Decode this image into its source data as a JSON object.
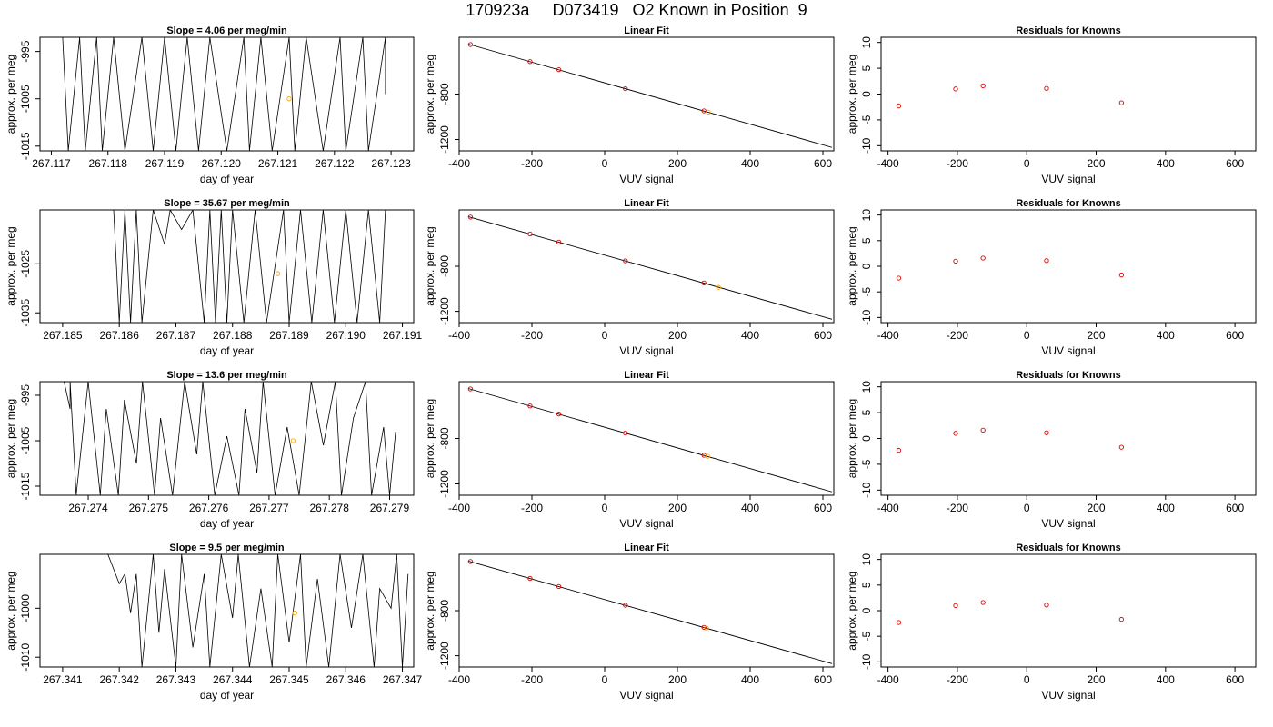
{
  "page": {
    "title": "170923a     D073419   O2 Known in Position  9"
  },
  "chart_data": [
    {
      "type": "line",
      "panel": "time-series-1",
      "title": "Slope =  4.06  per meg/min",
      "xlabel": "day of year",
      "ylabel": "approx. per meg",
      "xlim": [
        267.1168,
        267.1234
      ],
      "ylim": [
        -1016,
        -992
      ],
      "xticks": [
        267.117,
        267.118,
        267.119,
        267.12,
        267.121,
        267.122,
        267.123
      ],
      "yticks": [
        -995,
        -1005,
        -1015
      ],
      "grid": false,
      "series": [
        {
          "values": [
            [
              267.1172,
              -992
            ],
            [
              267.1173,
              -1016
            ],
            [
              267.1175,
              -992
            ],
            [
              267.1176,
              -1016
            ],
            [
              267.1178,
              -992
            ],
            [
              267.1179,
              -1016
            ],
            [
              267.1181,
              -992
            ],
            [
              267.1183,
              -1016
            ],
            [
              267.1186,
              -992
            ],
            [
              267.1188,
              -1016
            ],
            [
              267.119,
              -992
            ],
            [
              267.1192,
              -1016
            ],
            [
              267.1194,
              -992
            ],
            [
              267.1196,
              -1016
            ],
            [
              267.1198,
              -992
            ],
            [
              267.1201,
              -1016
            ],
            [
              267.1204,
              -992
            ],
            [
              267.1205,
              -1016
            ],
            [
              267.1207,
              -992
            ],
            [
              267.1209,
              -1016
            ],
            [
              267.1212,
              -992
            ],
            [
              267.1213,
              -1016
            ],
            [
              267.1215,
              -992
            ],
            [
              267.1218,
              -1016
            ],
            [
              267.1221,
              -992
            ],
            [
              267.1222,
              -1016
            ],
            [
              267.1225,
              -992
            ],
            [
              267.1226,
              -1016
            ],
            [
              267.1229,
              -992
            ],
            [
              267.1229,
              -1004
            ]
          ]
        }
      ],
      "markers": [
        {
          "x": 267.1212,
          "y": -1005,
          "color": "#ffa500"
        }
      ]
    },
    {
      "type": "scatter",
      "panel": "linear-fit-1",
      "title": "Linear Fit",
      "xlabel": "VUV signal",
      "ylabel": "approx. per meg",
      "xlim": [
        -400,
        630
      ],
      "ylim": [
        -1300,
        -300
      ],
      "xticks": [
        -400,
        -200,
        0,
        200,
        400,
        600
      ],
      "yticks": [
        -800,
        -1200
      ],
      "fit_line": [
        [
          -375,
          -360
        ],
        [
          625,
          -1270
        ]
      ],
      "points": [
        {
          "x": -369,
          "y": -364
        },
        {
          "x": -205,
          "y": -514
        },
        {
          "x": -126,
          "y": -585
        },
        {
          "x": 57,
          "y": -752
        },
        {
          "x": 273,
          "y": -948
        }
      ],
      "point_color": "#dd0000",
      "markers": [
        {
          "x": 285,
          "y": -959,
          "color": "#ffa500"
        }
      ]
    },
    {
      "type": "scatter",
      "panel": "residuals-1",
      "title": "Residuals for Knowns",
      "xlabel": "VUV signal",
      "ylabel": "approx. per meg",
      "xlim": [
        -420,
        660
      ],
      "ylim": [
        -11,
        11
      ],
      "xticks": [
        -400,
        -200,
        0,
        200,
        400,
        600
      ],
      "yticks": [
        10,
        5,
        0,
        -5,
        -10
      ],
      "points": [
        {
          "x": -369,
          "y": -2.3
        },
        {
          "x": -205,
          "y": 1.0
        },
        {
          "x": -126,
          "y": 1.6
        },
        {
          "x": 57,
          "y": 1.1
        },
        {
          "x": 273,
          "y": -1.7
        }
      ],
      "point_color": "#dd0000"
    },
    {
      "type": "line",
      "panel": "time-series-2",
      "title": "Slope =  35.67  per meg/min",
      "xlabel": "day of year",
      "ylabel": "approx. per meg",
      "xlim": [
        267.1846,
        267.1912
      ],
      "ylim": [
        -1037,
        -1014
      ],
      "xticks": [
        267.185,
        267.186,
        267.187,
        267.188,
        267.189,
        267.19,
        267.191
      ],
      "yticks": [
        -1025,
        -1035
      ],
      "grid": false,
      "series": [
        {
          "values": [
            [
              267.1859,
              -1014
            ],
            [
              267.186,
              -1037
            ],
            [
              267.1861,
              -1014
            ],
            [
              267.1862,
              -1037
            ],
            [
              267.1863,
              -1014
            ],
            [
              267.1864,
              -1037
            ],
            [
              267.1866,
              -1014
            ],
            [
              267.1868,
              -1021
            ],
            [
              267.1869,
              -1014
            ],
            [
              267.1871,
              -1018
            ],
            [
              267.1873,
              -1014
            ],
            [
              267.1875,
              -1037
            ],
            [
              267.1876,
              -1014
            ],
            [
              267.1877,
              -1037
            ],
            [
              267.1878,
              -1014
            ],
            [
              267.1879,
              -1037
            ],
            [
              267.188,
              -1014
            ],
            [
              267.1882,
              -1037
            ],
            [
              267.1884,
              -1014
            ],
            [
              267.1886,
              -1037
            ],
            [
              267.1889,
              -1014
            ],
            [
              267.189,
              -1037
            ],
            [
              267.1892,
              -1014
            ],
            [
              267.1894,
              -1037
            ],
            [
              267.1896,
              -1014
            ],
            [
              267.1898,
              -1037
            ],
            [
              267.19,
              -1014
            ],
            [
              267.1902,
              -1037
            ],
            [
              267.1904,
              -1014
            ],
            [
              267.1906,
              -1037
            ],
            [
              267.1907,
              -1014
            ]
          ]
        }
      ],
      "markers": [
        {
          "x": 267.1888,
          "y": -1027,
          "color": "#ffa500"
        }
      ]
    },
    {
      "type": "scatter",
      "panel": "linear-fit-2",
      "title": "Linear Fit",
      "xlabel": "VUV signal",
      "ylabel": "approx. per meg",
      "xlim": [
        -400,
        630
      ],
      "ylim": [
        -1300,
        -300
      ],
      "xticks": [
        -400,
        -200,
        0,
        200,
        400,
        600
      ],
      "yticks": [
        -800,
        -1200
      ],
      "fit_line": [
        [
          -375,
          -360
        ],
        [
          625,
          -1270
        ]
      ],
      "points": [
        {
          "x": -369,
          "y": -364
        },
        {
          "x": -205,
          "y": -514
        },
        {
          "x": -126,
          "y": -585
        },
        {
          "x": 57,
          "y": -752
        },
        {
          "x": 273,
          "y": -948
        }
      ],
      "point_color": "#dd0000",
      "markers": [
        {
          "x": 313,
          "y": -987,
          "color": "#ffa500"
        }
      ]
    },
    {
      "type": "scatter",
      "panel": "residuals-2",
      "title": "Residuals for Knowns",
      "xlabel": "VUV signal",
      "ylabel": "approx. per meg",
      "xlim": [
        -420,
        660
      ],
      "ylim": [
        -11,
        11
      ],
      "xticks": [
        -400,
        -200,
        0,
        200,
        400,
        600
      ],
      "yticks": [
        10,
        5,
        0,
        -5,
        -10
      ],
      "points": [
        {
          "x": -369,
          "y": -2.3
        },
        {
          "x": -205,
          "y": 1.0
        },
        {
          "x": -126,
          "y": 1.6
        },
        {
          "x": 57,
          "y": 1.1
        },
        {
          "x": 273,
          "y": -1.7
        }
      ],
      "point_color": "#dd0000"
    },
    {
      "type": "line",
      "panel": "time-series-3",
      "title": "Slope =  13.6  per meg/min",
      "xlabel": "day of year",
      "ylabel": "approx. per meg",
      "xlim": [
        267.2732,
        267.2794
      ],
      "ylim": [
        -1017,
        -992
      ],
      "xticks": [
        267.274,
        267.275,
        267.276,
        267.277,
        267.278,
        267.279
      ],
      "yticks": [
        -995,
        -1005,
        -1015
      ],
      "grid": false,
      "series": [
        {
          "values": [
            [
              267.2736,
              -992
            ],
            [
              267.2737,
              -998
            ],
            [
              267.2737,
              -992
            ],
            [
              267.2738,
              -1017
            ],
            [
              267.274,
              -992
            ],
            [
              267.2742,
              -1017
            ],
            [
              267.2743,
              -998
            ],
            [
              267.2745,
              -1017
            ],
            [
              267.2746,
              -996
            ],
            [
              267.2748,
              -1010
            ],
            [
              267.2749,
              -992
            ],
            [
              267.2751,
              -1017
            ],
            [
              267.2752,
              -1000
            ],
            [
              267.2754,
              -1017
            ],
            [
              267.2756,
              -992
            ],
            [
              267.2758,
              -1008
            ],
            [
              267.2759,
              -992
            ],
            [
              267.2761,
              -1017
            ],
            [
              267.2763,
              -1004
            ],
            [
              267.2765,
              -1017
            ],
            [
              267.2766,
              -998
            ],
            [
              267.2768,
              -1012
            ],
            [
              267.2769,
              -992
            ],
            [
              267.2771,
              -1017
            ],
            [
              267.2773,
              -1002
            ],
            [
              267.2775,
              -1017
            ],
            [
              267.2777,
              -992
            ],
            [
              267.2779,
              -1006
            ],
            [
              267.2781,
              -992
            ],
            [
              267.2782,
              -1017
            ],
            [
              267.2784,
              -1000
            ],
            [
              267.2786,
              -992
            ],
            [
              267.2787,
              -1017
            ],
            [
              267.2789,
              -1002
            ],
            [
              267.279,
              -1017
            ],
            [
              267.2791,
              -1003
            ]
          ]
        }
      ],
      "markers": [
        {
          "x": 267.2774,
          "y": -1005,
          "color": "#ffa500"
        }
      ]
    },
    {
      "type": "scatter",
      "panel": "linear-fit-3",
      "title": "Linear Fit",
      "xlabel": "VUV signal",
      "ylabel": "approx. per meg",
      "xlim": [
        -400,
        630
      ],
      "ylim": [
        -1300,
        -300
      ],
      "xticks": [
        -400,
        -200,
        0,
        200,
        400,
        600
      ],
      "yticks": [
        -800,
        -1200
      ],
      "fit_line": [
        [
          -375,
          -360
        ],
        [
          625,
          -1270
        ]
      ],
      "points": [
        {
          "x": -369,
          "y": -364
        },
        {
          "x": -205,
          "y": -514
        },
        {
          "x": -126,
          "y": -585
        },
        {
          "x": 57,
          "y": -752
        },
        {
          "x": 273,
          "y": -948
        }
      ],
      "point_color": "#dd0000",
      "markers": [
        {
          "x": 283,
          "y": -957,
          "color": "#ffa500"
        }
      ]
    },
    {
      "type": "scatter",
      "panel": "residuals-3",
      "title": "Residuals for Knowns",
      "xlabel": "VUV signal",
      "ylabel": "approx. per meg",
      "xlim": [
        -420,
        660
      ],
      "ylim": [
        -11,
        11
      ],
      "xticks": [
        -400,
        -200,
        0,
        200,
        400,
        600
      ],
      "yticks": [
        10,
        5,
        0,
        -5,
        -10
      ],
      "points": [
        {
          "x": -369,
          "y": -2.3
        },
        {
          "x": -205,
          "y": 1.0
        },
        {
          "x": -126,
          "y": 1.6
        },
        {
          "x": 57,
          "y": 1.1
        },
        {
          "x": 273,
          "y": -1.7
        }
      ],
      "point_color": "#dd0000"
    },
    {
      "type": "line",
      "panel": "time-series-4",
      "title": "Slope =  9.5  per meg/min",
      "xlabel": "day of year",
      "ylabel": "approx. per meg",
      "xlim": [
        267.3406,
        267.3472
      ],
      "ylim": [
        -1012,
        -989
      ],
      "xticks": [
        267.341,
        267.342,
        267.343,
        267.344,
        267.345,
        267.346,
        267.347
      ],
      "yticks": [
        -1000,
        -1010
      ],
      "grid": false,
      "series": [
        {
          "values": [
            [
              267.3418,
              -989
            ],
            [
              267.342,
              -995
            ],
            [
              267.3421,
              -993
            ],
            [
              267.3422,
              -1001
            ],
            [
              267.3423,
              -993
            ],
            [
              267.3424,
              -1012
            ],
            [
              267.3426,
              -989
            ],
            [
              267.3427,
              -1005
            ],
            [
              267.3428,
              -992
            ],
            [
              267.343,
              -1012
            ],
            [
              267.3431,
              -989
            ],
            [
              267.3433,
              -1008
            ],
            [
              267.3435,
              -993
            ],
            [
              267.3436,
              -1012
            ],
            [
              267.3438,
              -989
            ],
            [
              267.344,
              -1002
            ],
            [
              267.3441,
              -989
            ],
            [
              267.3443,
              -1012
            ],
            [
              267.3445,
              -996
            ],
            [
              267.3447,
              -1012
            ],
            [
              267.3448,
              -989
            ],
            [
              267.345,
              -1007
            ],
            [
              267.3452,
              -989
            ],
            [
              267.3453,
              -1012
            ],
            [
              267.3455,
              -994
            ],
            [
              267.3457,
              -1012
            ],
            [
              267.3459,
              -989
            ],
            [
              267.3461,
              -1004
            ],
            [
              267.3463,
              -989
            ],
            [
              267.3465,
              -1012
            ],
            [
              267.3466,
              -996
            ],
            [
              267.3468,
              -1000
            ],
            [
              267.3469,
              -989
            ],
            [
              267.347,
              -1012
            ],
            [
              267.3471,
              -993
            ]
          ]
        }
      ],
      "markers": [
        {
          "x": 267.3451,
          "y": -1001,
          "color": "#ffa500"
        }
      ]
    },
    {
      "type": "scatter",
      "panel": "linear-fit-4",
      "title": "Linear Fit",
      "xlabel": "VUV signal",
      "ylabel": "approx. per meg",
      "xlim": [
        -400,
        630
      ],
      "ylim": [
        -1300,
        -300
      ],
      "xticks": [
        -400,
        -200,
        0,
        200,
        400,
        600
      ],
      "yticks": [
        -800,
        -1200
      ],
      "fit_line": [
        [
          -375,
          -360
        ],
        [
          625,
          -1270
        ]
      ],
      "points": [
        {
          "x": -369,
          "y": -364
        },
        {
          "x": -205,
          "y": -514
        },
        {
          "x": -126,
          "y": -585
        },
        {
          "x": 57,
          "y": -752
        },
        {
          "x": 273,
          "y": -948
        }
      ],
      "point_color": "#dd0000",
      "markers": [
        {
          "x": 280,
          "y": -954,
          "color": "#ffa500"
        }
      ]
    },
    {
      "type": "scatter",
      "panel": "residuals-4",
      "title": "Residuals for Knowns",
      "xlabel": "VUV signal",
      "ylabel": "approx. per meg",
      "xlim": [
        -420,
        660
      ],
      "ylim": [
        -11,
        11
      ],
      "xticks": [
        -400,
        -200,
        0,
        200,
        400,
        600
      ],
      "yticks": [
        10,
        5,
        0,
        -5,
        -10
      ],
      "points": [
        {
          "x": -369,
          "y": -2.3
        },
        {
          "x": -205,
          "y": 1.0
        },
        {
          "x": -126,
          "y": 1.6
        },
        {
          "x": 57,
          "y": 1.1
        },
        {
          "x": 273,
          "y": -1.7
        }
      ],
      "point_color": "#dd0000"
    }
  ]
}
